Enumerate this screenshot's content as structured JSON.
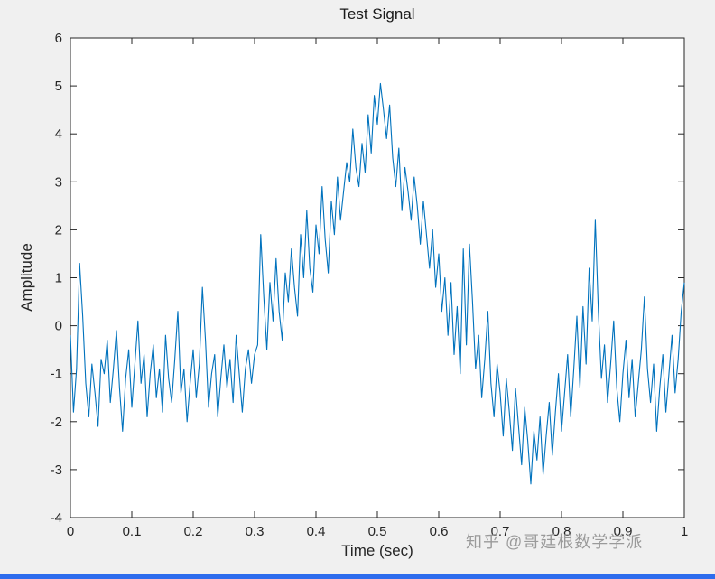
{
  "watermark": "知乎 @哥廷根数学学派",
  "colors": {
    "line": "#0072BD",
    "axis": "#262626",
    "figure_bg": "#f0f0f0",
    "plot_bg": "#ffffff",
    "tick_label": "#262626",
    "watermark": "#9a9a9a",
    "bottom_bar": "#2d6ced"
  },
  "chart_data": {
    "type": "line",
    "title": "Test Signal",
    "xlabel": "Time (sec)",
    "ylabel": "Amplitude",
    "xlim": [
      0,
      1
    ],
    "ylim": [
      -4,
      6
    ],
    "grid": false,
    "legend": null,
    "x_tick_labels": [
      "0",
      "0.1",
      "0.2",
      "0.3",
      "0.4",
      "0.5",
      "0.6",
      "0.7",
      "0.8",
      "0.9",
      "1"
    ],
    "y_tick_labels": [
      "-4",
      "-3",
      "-2",
      "-1",
      "0",
      "1",
      "2",
      "3",
      "4",
      "5",
      "6"
    ],
    "x_start": 0,
    "x_step": 0.005,
    "values": [
      -0.2,
      -1.8,
      -0.9,
      1.3,
      0.2,
      -1.2,
      -1.9,
      -0.8,
      -1.4,
      -2.1,
      -0.7,
      -1.0,
      -0.3,
      -1.6,
      -0.9,
      -0.1,
      -1.3,
      -2.2,
      -1.1,
      -0.5,
      -1.7,
      -0.8,
      0.1,
      -1.2,
      -0.6,
      -1.9,
      -1.0,
      -0.4,
      -1.5,
      -0.9,
      -1.8,
      -0.2,
      -1.1,
      -1.6,
      -0.7,
      0.3,
      -1.4,
      -0.9,
      -2.0,
      -1.2,
      -0.5,
      -1.5,
      -0.8,
      0.8,
      -0.3,
      -1.7,
      -1.0,
      -0.6,
      -1.9,
      -1.1,
      -0.4,
      -1.3,
      -0.7,
      -1.6,
      -0.2,
      -1.0,
      -1.8,
      -0.9,
      -0.5,
      -1.2,
      -0.6,
      -0.4,
      1.9,
      0.6,
      -0.5,
      0.9,
      0.1,
      1.4,
      0.3,
      -0.3,
      1.1,
      0.5,
      1.6,
      0.8,
      0.2,
      1.9,
      1.0,
      2.4,
      1.2,
      0.7,
      2.1,
      1.5,
      2.9,
      1.8,
      1.1,
      2.6,
      1.9,
      3.1,
      2.2,
      2.8,
      3.4,
      3.0,
      4.1,
      3.3,
      2.9,
      3.8,
      3.2,
      4.4,
      3.6,
      4.8,
      4.2,
      5.05,
      4.5,
      3.9,
      4.6,
      3.5,
      2.9,
      3.7,
      2.4,
      3.3,
      2.8,
      2.2,
      3.1,
      2.5,
      1.7,
      2.6,
      1.9,
      1.2,
      2.0,
      0.8,
      1.5,
      0.3,
      1.0,
      -0.2,
      0.9,
      -0.6,
      0.4,
      -1.0,
      1.6,
      -0.4,
      1.7,
      0.5,
      -0.9,
      -0.2,
      -1.5,
      -0.7,
      0.3,
      -1.2,
      -1.9,
      -0.8,
      -1.4,
      -2.3,
      -1.1,
      -1.8,
      -2.6,
      -1.3,
      -2.1,
      -2.9,
      -1.7,
      -2.4,
      -3.3,
      -2.2,
      -2.8,
      -1.9,
      -3.1,
      -2.3,
      -1.6,
      -2.7,
      -1.8,
      -1.0,
      -2.2,
      -1.4,
      -0.6,
      -1.9,
      -0.9,
      0.2,
      -1.3,
      0.4,
      -0.8,
      1.2,
      0.1,
      2.2,
      0.3,
      -1.1,
      -0.4,
      -1.6,
      -0.8,
      0.1,
      -1.3,
      -2.0,
      -1.0,
      -0.3,
      -1.5,
      -0.7,
      -1.9,
      -1.2,
      -0.5,
      0.6,
      -0.9,
      -1.6,
      -0.8,
      -2.2,
      -1.3,
      -0.6,
      -1.8,
      -1.0,
      -0.2,
      -1.4,
      -0.7,
      0.3,
      0.9
    ]
  }
}
